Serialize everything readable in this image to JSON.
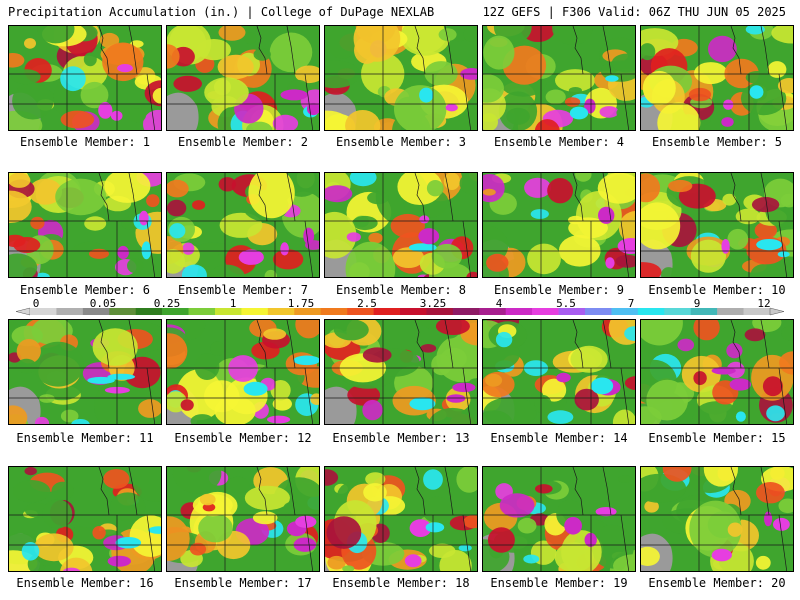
{
  "header": {
    "title": "Precipitation Accumulation (in.) | College of DuPage NEXLAB",
    "run_info": "12Z GEFS | F306 Valid: 06Z THU JUN 05 2025"
  },
  "colorbar": {
    "tick_labels": [
      "0",
      "0.05",
      "0.25",
      "1",
      "1.75",
      "2.5",
      "3.25",
      "4",
      "5.5",
      "7",
      "9",
      "12"
    ],
    "colors": [
      "#d6d6d6",
      "#b0b0b0",
      "#8a8a8a",
      "#5f8f3a",
      "#2f7d1f",
      "#3fa52e",
      "#7ccd3a",
      "#c8e632",
      "#f5f534",
      "#f2c62d",
      "#ee9a22",
      "#f07a1e",
      "#ee5420",
      "#e02020",
      "#c8102e",
      "#a8143c",
      "#8e1b66",
      "#a81f8f",
      "#cc2ac6",
      "#e63ee0",
      "#a95df0",
      "#7d8cf2",
      "#4fbff2",
      "#29e6ef",
      "#58d8d8",
      "#42b8b8",
      "#aeaeae",
      "#c9c9c9"
    ]
  },
  "precip_colors": [
    "#2f7d1f",
    "#3fa52e",
    "#7ccd3a",
    "#c8e632",
    "#f5f534",
    "#f2c62d",
    "#ee9a22",
    "#f07a1e",
    "#ee5420",
    "#e02020",
    "#c8102e",
    "#a8143c",
    "#cc2ac6",
    "#e63ee0",
    "#29e6ef"
  ],
  "members": [
    {
      "label": "Ensemble Member: 1"
    },
    {
      "label": "Ensemble Member: 2"
    },
    {
      "label": "Ensemble Member: 3"
    },
    {
      "label": "Ensemble Member: 4"
    },
    {
      "label": "Ensemble Member: 5"
    },
    {
      "label": "Ensemble Member: 6"
    },
    {
      "label": "Ensemble Member: 7"
    },
    {
      "label": "Ensemble Member: 8"
    },
    {
      "label": "Ensemble Member: 9"
    },
    {
      "label": "Ensemble Member: 10"
    },
    {
      "label": "Ensemble Member: 11"
    },
    {
      "label": "Ensemble Member: 12"
    },
    {
      "label": "Ensemble Member: 13"
    },
    {
      "label": "Ensemble Member: 14"
    },
    {
      "label": "Ensemble Member: 15"
    },
    {
      "label": "Ensemble Member: 16"
    },
    {
      "label": "Ensemble Member: 17"
    },
    {
      "label": "Ensemble Member: 18"
    },
    {
      "label": "Ensemble Member: 19"
    },
    {
      "label": "Ensemble Member: 20"
    }
  ]
}
